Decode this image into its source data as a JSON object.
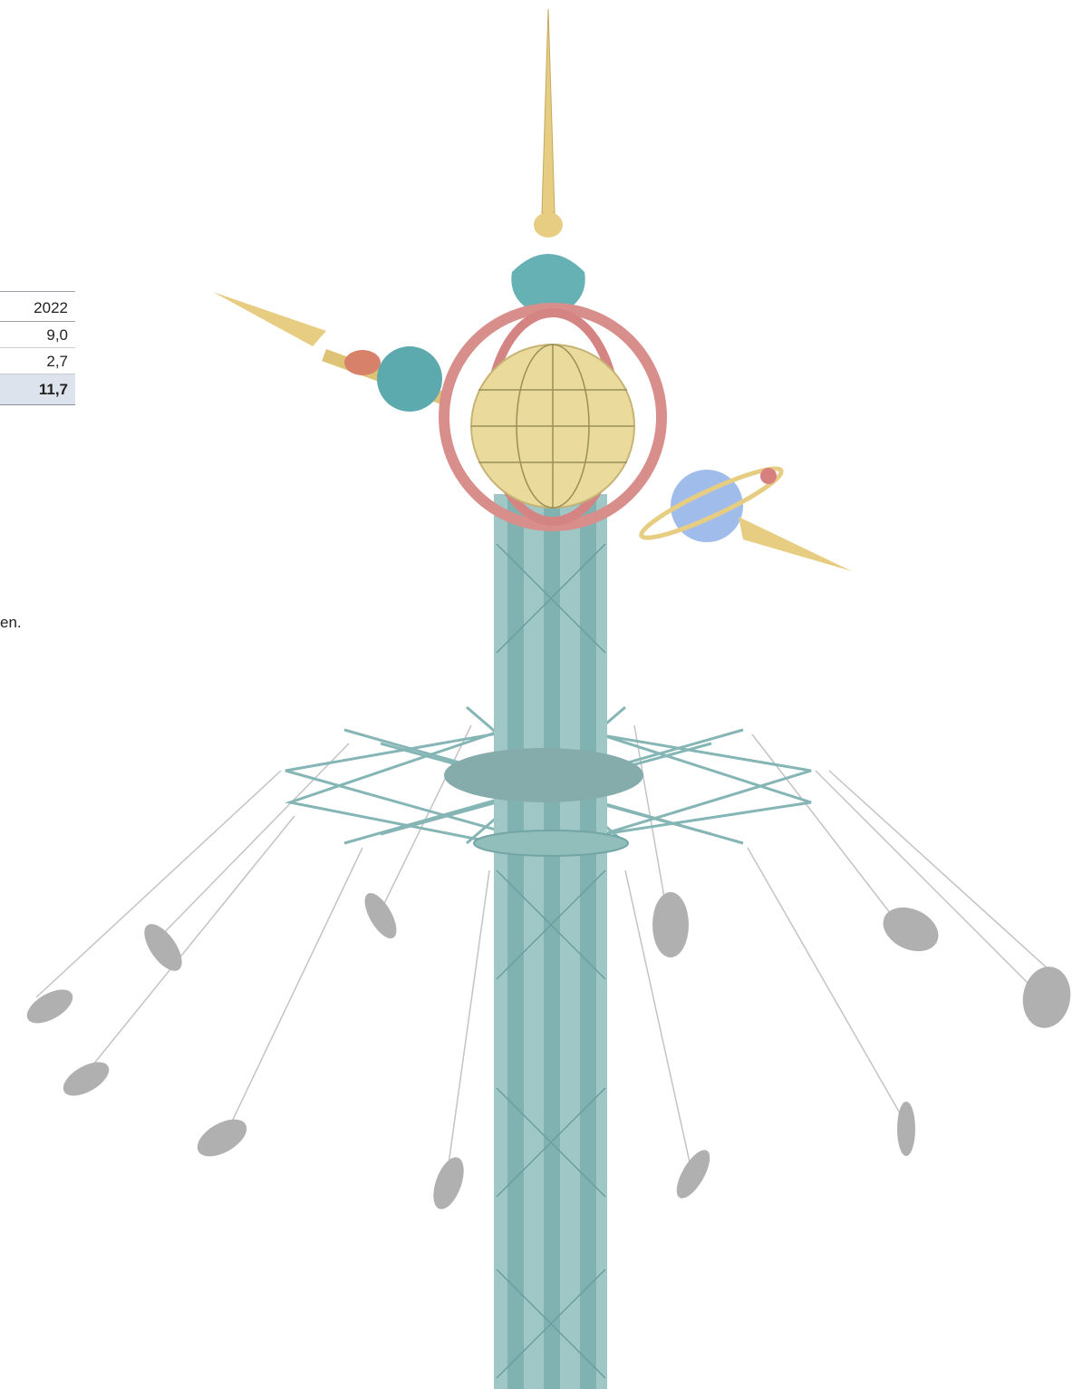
{
  "table": {
    "header": "2022",
    "rows": [
      "9,0",
      "2,7"
    ],
    "total": "11,7"
  },
  "fragment_text": "en.",
  "illustration": {
    "name": "swing-carousel-tower",
    "colors": {
      "tower": "#7fb2b0",
      "spire": "#e2c470",
      "ring": "#d07a78",
      "globe": "#e9d890",
      "teal_ornament": "#4aa0a4",
      "planet": "#8fb0e6",
      "riders": "#9a9a9a"
    }
  }
}
